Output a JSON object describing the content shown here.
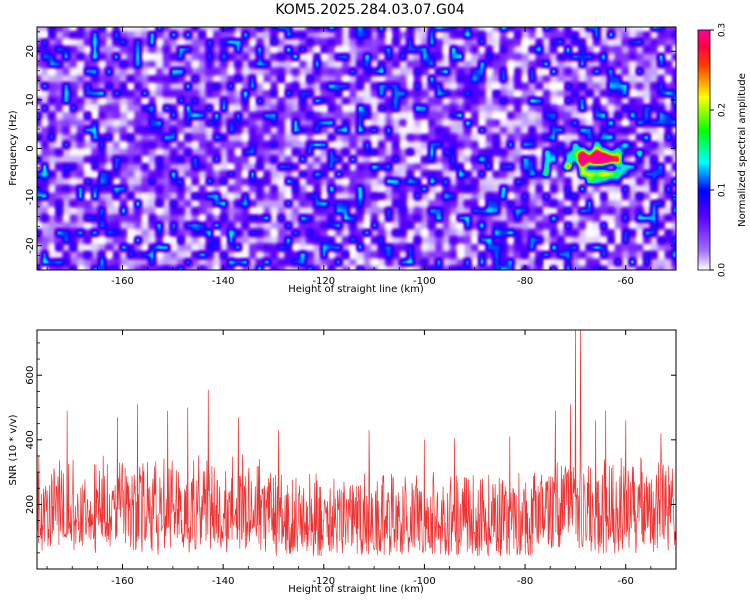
{
  "title": "KOM5.2025.284.03.07.G04",
  "chart_data": [
    {
      "type": "heatmap",
      "xlabel": "Height of straight line (km)",
      "ylabel": "Frequency (Hz)",
      "xlim": [
        -177,
        -50
      ],
      "ylim": [
        -25,
        25
      ],
      "x_ticks": [
        -160,
        -140,
        -120,
        -100,
        -80,
        -60
      ],
      "y_ticks": [
        -20,
        -10,
        0,
        10,
        20
      ],
      "colorbar": {
        "label": "Normalized spectral amplitude",
        "range": [
          0,
          0.3
        ],
        "ticks": [
          0.0,
          0.1,
          0.2,
          0.3
        ],
        "colors": [
          "#ffffff",
          "#8a2be2",
          "#0000ff",
          "#00ffff",
          "#00ff00",
          "#ffff00",
          "#ff0000",
          "#ff0080"
        ]
      },
      "background_level": 0.05,
      "hotspot": {
        "x_range": [
          -78,
          -57
        ],
        "y_range": [
          -7,
          1
        ],
        "peak": 0.3,
        "peak_at": [
          -66,
          -2
        ]
      }
    },
    {
      "type": "line",
      "xlabel": "Height of straight line (km)",
      "ylabel": "SNR (10 * v/v)",
      "xlim": [
        -177,
        -50
      ],
      "ylim": [
        0,
        740
      ],
      "x_ticks": [
        -160,
        -140,
        -120,
        -100,
        -80,
        -60
      ],
      "y_ticks": [
        200,
        400,
        600
      ],
      "color": "#ee3333",
      "baseline_range": [
        40,
        300
      ],
      "peaks": [
        {
          "x": -171,
          "y": 490
        },
        {
          "x": -161,
          "y": 470
        },
        {
          "x": -157,
          "y": 510
        },
        {
          "x": -151,
          "y": 490
        },
        {
          "x": -147,
          "y": 500
        },
        {
          "x": -143,
          "y": 555
        },
        {
          "x": -137,
          "y": 470
        },
        {
          "x": -129,
          "y": 430
        },
        {
          "x": -111,
          "y": 430
        },
        {
          "x": -100,
          "y": 400
        },
        {
          "x": -94,
          "y": 405
        },
        {
          "x": -83,
          "y": 410
        },
        {
          "x": -74,
          "y": 490
        },
        {
          "x": -71,
          "y": 510
        },
        {
          "x": -70,
          "y": 740
        },
        {
          "x": -69,
          "y": 740
        },
        {
          "x": -66,
          "y": 460
        },
        {
          "x": -64,
          "y": 490
        },
        {
          "x": -60,
          "y": 460
        },
        {
          "x": -53,
          "y": 420
        }
      ]
    }
  ]
}
